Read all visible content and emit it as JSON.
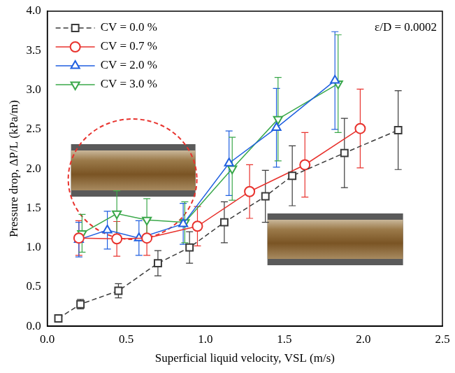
{
  "chart_data": {
    "type": "line",
    "xlabel": "Superficial liquid velocity, VSL (m/s)",
    "ylabel": "Pressure drop, ΔP/L (kPa/m)",
    "annotations": [
      {
        "text": "ε/D = 0.0002"
      }
    ],
    "xlim": [
      0,
      2.5
    ],
    "xticks": [
      {
        "value": 0,
        "label": "0.0"
      },
      0.5,
      {
        "value": 1,
        "label": "1.0"
      },
      1.5,
      {
        "value": 2,
        "label": "2.0"
      },
      2.5
    ],
    "ylim": [
      0,
      4
    ],
    "yticks": [
      {
        "value": 0,
        "label": "0.0"
      },
      0.5,
      {
        "value": 1,
        "label": "1.0"
      },
      1.5,
      {
        "value": 2,
        "label": "2.0"
      },
      2.5,
      {
        "value": 3,
        "label": "3.0"
      },
      3.5,
      {
        "value": 4,
        "label": "4.0"
      }
    ],
    "grid": false,
    "legend": "upper left",
    "series": [
      {
        "name": "CV = 0.0 %",
        "color": "#3a3a3a",
        "marker": "square",
        "line_style": "dashed",
        "x": [
          0.07,
          0.21,
          0.45,
          0.7,
          0.9,
          1.12,
          1.38,
          1.55,
          1.88,
          2.22
        ],
        "values": [
          0.1,
          0.28,
          0.45,
          0.8,
          1.0,
          1.32,
          1.65,
          1.91,
          2.2,
          2.49
        ],
        "errors": [
          0.02,
          0.06,
          0.09,
          0.16,
          0.2,
          0.26,
          0.33,
          0.38,
          0.44,
          0.5
        ]
      },
      {
        "name": "CV = 0.7 %",
        "color": "#e8322d",
        "marker": "circle",
        "line_style": "solid",
        "x": [
          0.2,
          0.44,
          0.63,
          0.95,
          1.28,
          1.63,
          1.98
        ],
        "values": [
          1.12,
          1.11,
          1.12,
          1.27,
          1.71,
          2.05,
          2.51
        ],
        "errors": [
          0.22,
          0.22,
          0.22,
          0.25,
          0.34,
          0.41,
          0.5
        ]
      },
      {
        "name": "CV = 2.0 %",
        "color": "#1f5fe0",
        "marker": "triangle",
        "line_style": "solid",
        "x": [
          0.2,
          0.38,
          0.58,
          0.86,
          1.15,
          1.45,
          1.82
        ],
        "values": [
          1.1,
          1.22,
          1.12,
          1.3,
          2.07,
          2.52,
          3.12
        ],
        "errors": [
          0.22,
          0.24,
          0.22,
          0.26,
          0.41,
          0.5,
          0.62
        ]
      },
      {
        "name": "CV = 3.0 %",
        "color": "#3aa84a",
        "marker": "triangle_down",
        "line_style": "solid",
        "x": [
          0.22,
          0.44,
          0.63,
          0.87,
          1.17,
          1.46,
          1.84
        ],
        "values": [
          1.18,
          1.43,
          1.35,
          1.32,
          2.0,
          2.63,
          3.08
        ],
        "errors": [
          0.24,
          0.29,
          0.27,
          0.26,
          0.4,
          0.53,
          0.62
        ]
      }
    ]
  }
}
